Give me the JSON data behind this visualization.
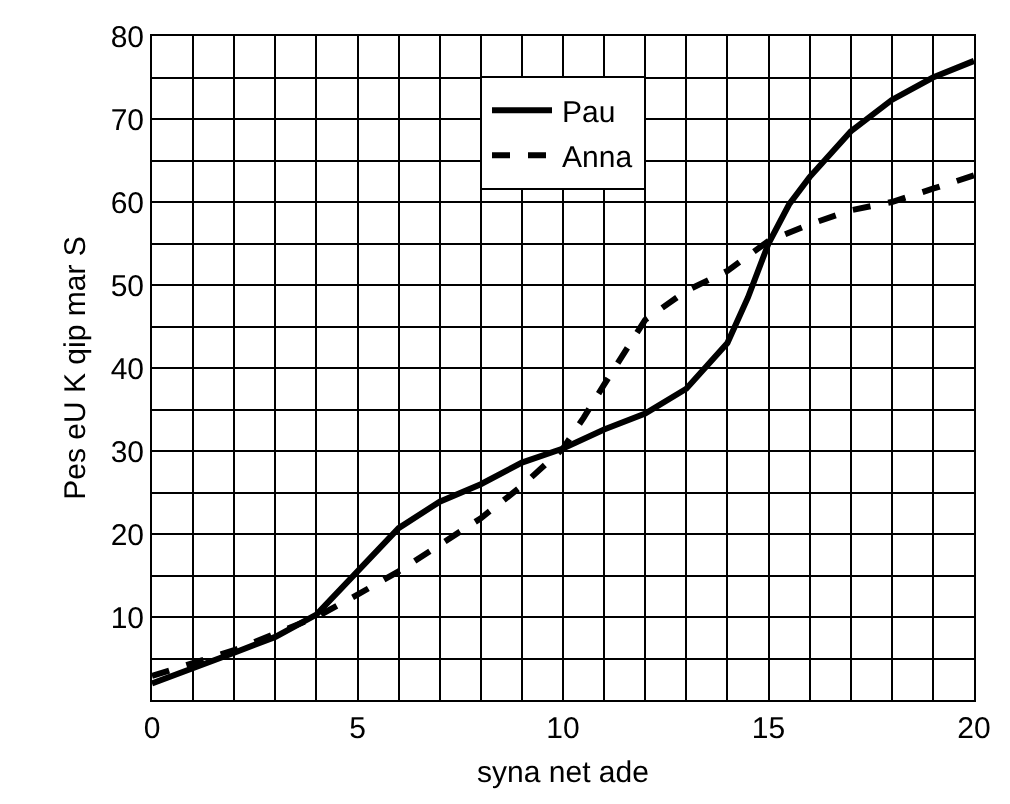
{
  "chart_data": {
    "type": "line",
    "xlabel": "syna net ade",
    "ylabel": "Pes eU K qip mar S",
    "xlim": [
      0,
      20
    ],
    "ylim": [
      0,
      80
    ],
    "xticks": [
      0,
      {
        "value": 1,
        "label": null
      },
      {
        "value": 2,
        "label": null
      },
      {
        "value": 3,
        "label": null
      },
      {
        "value": 4,
        "label": null
      },
      5,
      {
        "value": 6,
        "label": null
      },
      {
        "value": 7,
        "label": null
      },
      {
        "value": 8,
        "label": null
      },
      {
        "value": 9,
        "label": null
      },
      10,
      {
        "value": 11,
        "label": null
      },
      {
        "value": 12,
        "label": null
      },
      {
        "value": 13,
        "label": null
      },
      {
        "value": 14,
        "label": null
      },
      15,
      {
        "value": 16,
        "label": null
      },
      {
        "value": 17,
        "label": null
      },
      {
        "value": 18,
        "label": null
      },
      {
        "value": 19,
        "label": null
      },
      20
    ],
    "yticks": [
      {
        "value": 0,
        "label": null
      },
      {
        "value": 5,
        "label": null
      },
      10,
      {
        "value": 15,
        "label": null
      },
      20,
      {
        "value": 25,
        "label": null
      },
      30,
      {
        "value": 35,
        "label": null
      },
      40,
      {
        "value": 45,
        "label": null
      },
      50,
      {
        "value": 55,
        "label": null
      },
      60,
      {
        "value": 65,
        "label": null
      },
      70,
      {
        "value": 75,
        "label": null
      },
      80
    ],
    "grid": true,
    "legend": "top",
    "marker": "none",
    "series": [
      {
        "name": "Pau",
        "color": "#000000",
        "line_style": "solid",
        "x": [
          0,
          2,
          3,
          4,
          5,
          6,
          7,
          8,
          9,
          10,
          11,
          12,
          13,
          14,
          14.5,
          15,
          15.5,
          16,
          17,
          18,
          19,
          20
        ],
        "values": [
          2,
          5.7,
          7.6,
          10.3,
          15.5,
          20.7,
          23.9,
          26,
          28.6,
          30.3,
          32.6,
          34.5,
          37.5,
          43,
          48.5,
          55,
          59.7,
          63,
          68.5,
          72.3,
          75,
          77
        ]
      },
      {
        "name": "Anna",
        "color": "#000000",
        "line_style": "dashed",
        "x": [
          0,
          2,
          4,
          5,
          6,
          7,
          8,
          9,
          10,
          10.5,
          11,
          12,
          13,
          14,
          15,
          16,
          17,
          18,
          19,
          20
        ],
        "values": [
          2.9,
          6,
          10,
          12.7,
          15.5,
          18.7,
          21.9,
          25.8,
          30.3,
          34,
          38,
          45.8,
          49.3,
          51.7,
          55.3,
          57.3,
          59,
          60,
          61.6,
          63.2
        ]
      }
    ]
  }
}
